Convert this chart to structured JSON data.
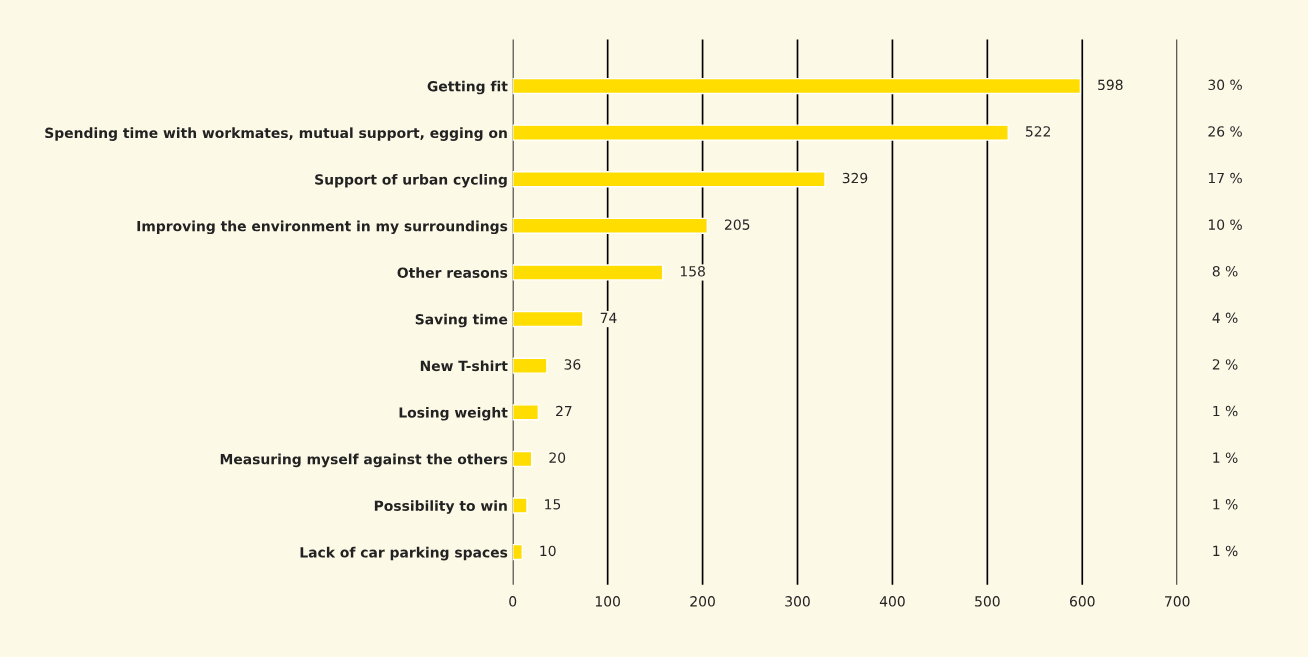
{
  "chart_data": {
    "type": "bar",
    "orientation": "horizontal",
    "categories": [
      "Getting fit",
      "Spending time with workmates, mutual support, egging on",
      "Support of urban cycling",
      "Improving the environment in my surroundings",
      "Other reasons",
      "Saving time",
      "New T-shirt",
      "Losing weight",
      "Measuring myself against the others",
      "Possibility to win",
      "Lack of car parking spaces"
    ],
    "values": [
      598,
      522,
      329,
      205,
      158,
      74,
      36,
      27,
      20,
      15,
      10
    ],
    "color": "#ffdd00",
    "xlim": [
      0,
      700
    ],
    "xticks": [
      0,
      100,
      200,
      300,
      400,
      500,
      600,
      700
    ],
    "grid": "x",
    "data_labels": true,
    "legend": false,
    "annotations": [
      "30 %",
      "26 %",
      "17 %",
      "10 %",
      "8 %",
      "4 %",
      "2 %",
      "1 %",
      "1 %",
      "1 %",
      "1 %"
    ]
  }
}
